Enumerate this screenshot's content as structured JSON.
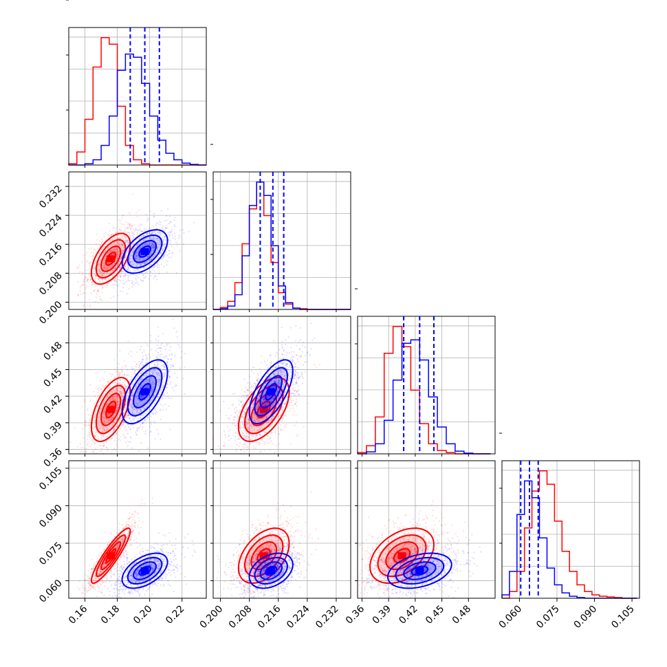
{
  "colors": {
    "red": "#ff0000",
    "blue": "#0000ff",
    "grid": "#b0b0b0"
  },
  "chart_data": {
    "type": "corner",
    "grid": true,
    "parameters": [
      {
        "range": [
          0.15,
          0.235
        ],
        "ticks": [
          0.16,
          0.18,
          0.2,
          0.22
        ],
        "tick_labels": [
          "0.16",
          "0.18",
          "0.20",
          "0.22"
        ]
      },
      {
        "range": [
          0.198,
          0.236
        ],
        "ticks": [
          0.2,
          0.208,
          0.216,
          0.224,
          0.232
        ],
        "tick_labels": [
          "0.200",
          "0.208",
          "0.216",
          "0.224",
          "0.232"
        ]
      },
      {
        "range": [
          0.355,
          0.51
        ],
        "ticks": [
          0.36,
          0.39,
          0.42,
          0.45,
          0.48
        ],
        "tick_labels": [
          "0.36",
          "0.39",
          "0.42",
          "0.45",
          "0.48"
        ]
      },
      {
        "range": [
          0.053,
          0.108
        ],
        "ticks": [
          0.06,
          0.075,
          0.09,
          0.105
        ],
        "tick_labels": [
          "0.060",
          "0.075",
          "0.090",
          "0.105"
        ]
      }
    ],
    "series": [
      {
        "color": "red",
        "means": [
          0.176,
          0.212,
          0.405,
          0.07
        ],
        "sds": [
          0.006,
          0.0035,
          0.018,
          0.0055
        ],
        "correlations": [
          [
            0,
            1,
            0.55
          ],
          [
            0,
            2,
            0.55
          ],
          [
            0,
            3,
            0.9
          ],
          [
            1,
            2,
            0.55
          ],
          [
            1,
            3,
            0.45
          ],
          [
            2,
            3,
            0.4
          ]
        ],
        "histograms": [
          [
            0.15,
            0.155,
            0.16,
            0.165,
            0.17,
            0.175,
            0.18,
            0.185,
            0.19,
            0.195,
            0.2,
            0.205,
            0.21,
            0.215,
            0.22,
            0.225,
            0.23,
            0.235
          ],
          [
            0.198,
            0.2,
            0.202,
            0.204,
            0.206,
            0.208,
            0.21,
            0.212,
            0.214,
            0.216,
            0.218,
            0.22,
            0.222,
            0.224,
            0.226,
            0.228,
            0.23,
            0.232,
            0.234,
            0.236
          ],
          [
            0.355,
            0.365,
            0.375,
            0.385,
            0.395,
            0.405,
            0.415,
            0.425,
            0.435,
            0.445,
            0.455,
            0.465,
            0.475,
            0.485,
            0.495,
            0.505
          ],
          [
            0.053,
            0.056,
            0.059,
            0.062,
            0.065,
            0.068,
            0.071,
            0.074,
            0.077,
            0.08,
            0.083,
            0.086,
            0.089,
            0.092,
            0.095,
            0.098,
            0.101,
            0.104,
            0.107
          ]
        ],
        "counts": [
          [
            2,
            20,
            70,
            150,
            195,
            185,
            90,
            30,
            8,
            2,
            0,
            0,
            0,
            0,
            0,
            0,
            0
          ],
          [
            0,
            3,
            12,
            40,
            98,
            150,
            190,
            140,
            70,
            25,
            8,
            2,
            1,
            0,
            0,
            0,
            0,
            0,
            0
          ],
          [
            2,
            12,
            55,
            150,
            190,
            160,
            95,
            45,
            15,
            5,
            2,
            0,
            0,
            0,
            0
          ],
          [
            0,
            10,
            40,
            105,
            160,
            190,
            170,
            115,
            70,
            40,
            20,
            10,
            5,
            3,
            2,
            1,
            0,
            0
          ]
        ]
      },
      {
        "color": "blue",
        "means": [
          0.197,
          0.214,
          0.425,
          0.064
        ],
        "sds": [
          0.007,
          0.003,
          0.018,
          0.0035
        ],
        "correlations": [
          [
            0,
            1,
            0.5
          ],
          [
            0,
            2,
            0.6
          ],
          [
            0,
            3,
            0.5
          ],
          [
            1,
            2,
            0.65
          ],
          [
            1,
            3,
            0.35
          ],
          [
            2,
            3,
            0.35
          ]
        ],
        "histograms": [
          [
            0.15,
            0.155,
            0.16,
            0.165,
            0.17,
            0.175,
            0.18,
            0.185,
            0.19,
            0.195,
            0.2,
            0.205,
            0.21,
            0.215,
            0.22,
            0.225,
            0.23,
            0.235
          ],
          [
            0.198,
            0.2,
            0.202,
            0.204,
            0.206,
            0.208,
            0.21,
            0.212,
            0.214,
            0.216,
            0.218,
            0.22,
            0.222,
            0.224,
            0.226,
            0.228,
            0.23,
            0.232,
            0.234,
            0.236
          ],
          [
            0.355,
            0.365,
            0.375,
            0.385,
            0.395,
            0.405,
            0.415,
            0.425,
            0.435,
            0.445,
            0.455,
            0.465,
            0.475,
            0.485,
            0.495,
            0.505
          ],
          [
            0.053,
            0.056,
            0.059,
            0.062,
            0.065,
            0.068,
            0.071,
            0.074,
            0.077,
            0.08,
            0.083,
            0.086,
            0.089,
            0.092,
            0.095,
            0.098,
            0.101,
            0.104,
            0.107
          ]
        ],
        "counts": [
          [
            0,
            0,
            2,
            8,
            30,
            75,
            145,
            170,
            165,
            125,
            75,
            38,
            18,
            8,
            3,
            1,
            0
          ],
          [
            0,
            1,
            5,
            22,
            80,
            155,
            190,
            170,
            95,
            35,
            10,
            2,
            0,
            0,
            0,
            0,
            0,
            0,
            0
          ],
          [
            0,
            3,
            15,
            50,
            110,
            165,
            170,
            140,
            85,
            40,
            15,
            4,
            1,
            0,
            0
          ],
          [
            5,
            40,
            125,
            175,
            150,
            90,
            45,
            20,
            8,
            3,
            1,
            0,
            0,
            0,
            0,
            0,
            0,
            0
          ]
        ],
        "quantiles": [
          [
            0.188,
            0.197,
            0.206
          ],
          [
            0.211,
            0.2145,
            0.2175
          ],
          [
            0.407,
            0.425,
            0.441
          ],
          [
            0.0605,
            0.064,
            0.0675
          ]
        ]
      }
    ],
    "contour_levels_sigma": [
      0.5,
      1.0,
      1.5,
      2.0
    ],
    "quantile_line_color": "blue",
    "quantile_line_style": "dashed"
  }
}
